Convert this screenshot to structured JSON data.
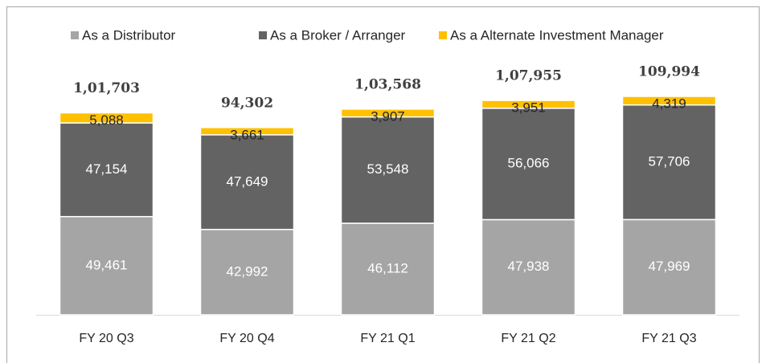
{
  "chart_data": {
    "type": "stacked_bar",
    "categories": [
      "FY 20 Q3",
      "FY 20 Q4",
      "FY 21 Q1",
      "FY 21 Q2",
      "FY 21 Q3"
    ],
    "series": [
      {
        "name": "As a Distributor",
        "color": "#a5a5a5",
        "values": [
          49461,
          42992,
          46112,
          47938,
          47969
        ],
        "value_labels": [
          "49,461",
          "42,992",
          "46,112",
          "47,938",
          "47,969"
        ]
      },
      {
        "name": "As a Broker / Arranger",
        "color": "#636363",
        "values": [
          47154,
          47649,
          53548,
          56066,
          57706
        ],
        "value_labels": [
          "47,154",
          "47,649",
          "53,548",
          "56,066",
          "57,706"
        ]
      },
      {
        "name": "As a Alternate Investment Manager",
        "color": "#ffc000",
        "values": [
          5088,
          3661,
          3907,
          3951,
          4319
        ],
        "value_labels": [
          "5,088",
          "3,661",
          "3,907",
          "3,951",
          "4,319"
        ]
      }
    ],
    "totals": [
      101703,
      94302,
      103568,
      107955,
      109994
    ],
    "total_labels": [
      "1,01,703",
      "94,302",
      "1,03,568",
      "1,07,955",
      "109,994"
    ],
    "legend": "top"
  }
}
